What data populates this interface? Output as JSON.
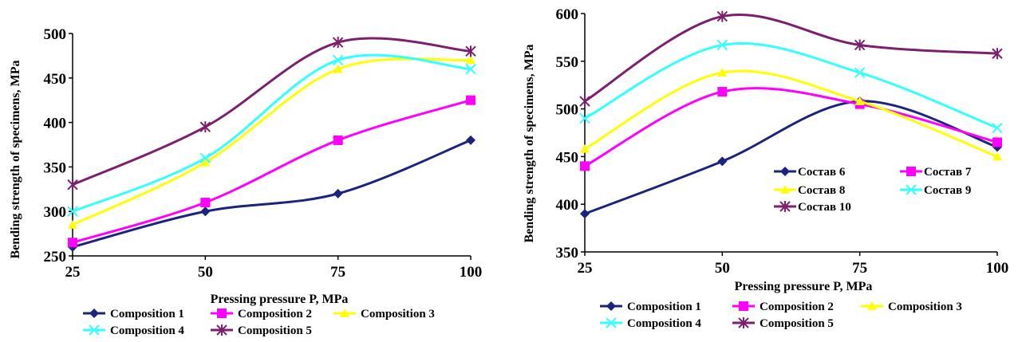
{
  "chart_data": [
    {
      "type": "line",
      "x": [
        25,
        50,
        75,
        100
      ],
      "xlabel": "Pressing pressure P, MPa",
      "ylabel": "Bending strength of specimens, MPa",
      "xlim": [
        25,
        100
      ],
      "ylim": [
        250,
        500
      ],
      "yticks": [
        250,
        300,
        350,
        400,
        450,
        500
      ],
      "xtick_labels": [
        "25",
        "50",
        "75",
        "100"
      ],
      "grid": false,
      "legend_position": "bottom",
      "series": [
        {
          "name": "Composition 1",
          "values": [
            260,
            300,
            320,
            380
          ],
          "color": "#1a237e",
          "marker": "diamond"
        },
        {
          "name": "Composition 2",
          "values": [
            265,
            310,
            380,
            425
          ],
          "color": "#ff00ff",
          "marker": "square"
        },
        {
          "name": "Composition 3",
          "values": [
            285,
            355,
            460,
            470
          ],
          "color": "#ffff00",
          "marker": "triangle"
        },
        {
          "name": "Composition 4",
          "values": [
            300,
            360,
            470,
            460
          ],
          "color": "#33ffff",
          "marker": "x"
        },
        {
          "name": "Composition 5",
          "values": [
            330,
            395,
            490,
            480
          ],
          "color": "#7b1f6e",
          "marker": "star"
        }
      ]
    },
    {
      "type": "line",
      "x": [
        25,
        50,
        75,
        100
      ],
      "xlabel": "Pressing pressure P, MPa",
      "ylabel": "Bending strength of specimens, MPa",
      "xlim": [
        25,
        100
      ],
      "ylim": [
        350,
        600
      ],
      "yticks": [
        350,
        400,
        450,
        500,
        550,
        600
      ],
      "xtick_labels": [
        "25",
        "50",
        "75",
        "100"
      ],
      "grid": false,
      "legend_position": "bottom",
      "series": [
        {
          "name": "Composition 1",
          "values": [
            390,
            445,
            508,
            460
          ],
          "color": "#1a237e",
          "marker": "diamond"
        },
        {
          "name": "Composition 2",
          "values": [
            440,
            518,
            505,
            465
          ],
          "color": "#ff00ff",
          "marker": "square"
        },
        {
          "name": "Composition 3",
          "values": [
            458,
            538,
            508,
            450
          ],
          "color": "#ffff00",
          "marker": "triangle"
        },
        {
          "name": "Composition 4",
          "values": [
            490,
            567,
            538,
            480
          ],
          "color": "#33ffff",
          "marker": "x"
        },
        {
          "name": "Composition 5",
          "values": [
            508,
            597,
            567,
            558
          ],
          "color": "#7b1f6e",
          "marker": "star"
        }
      ],
      "inner_legend": [
        "Состав 6",
        "Состав 7",
        "Состав 8",
        "Состав 9",
        "Состав 10"
      ]
    }
  ]
}
